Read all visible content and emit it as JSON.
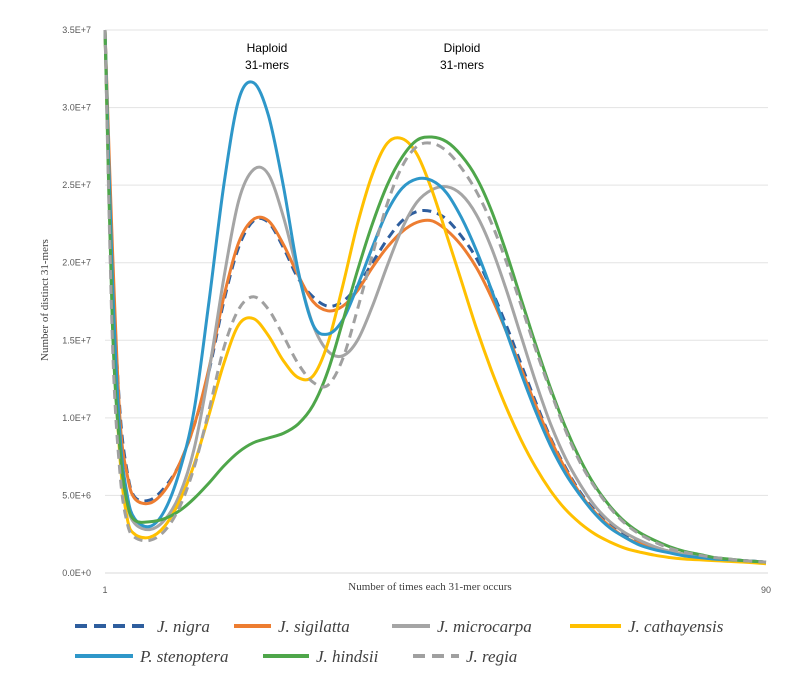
{
  "chart_data": {
    "type": "line",
    "title": "",
    "xlabel": "Number of times each 31-mer  occurs",
    "ylabel": "Number of distinct 31-mers",
    "xlim": [
      1,
      90
    ],
    "ylim": [
      0,
      35000000
    ],
    "grid": true,
    "legend_position": "bottom",
    "x_tick_labels": [
      "1",
      "90"
    ],
    "y_ticks": [
      {
        "value": 0,
        "label": "0.0E+0"
      },
      {
        "value": 5000000,
        "label": "5.0E+6"
      },
      {
        "value": 10000000,
        "label": "1.0E+7"
      },
      {
        "value": 15000000,
        "label": "1.5E+7"
      },
      {
        "value": 20000000,
        "label": "2.0E+7"
      },
      {
        "value": 25000000,
        "label": "2.5E+7"
      },
      {
        "value": 30000000,
        "label": "3.0E+7"
      },
      {
        "value": 35000000,
        "label": "3.5E+7"
      }
    ],
    "annotations": [
      {
        "lines": [
          "Haploid",
          "31-mers"
        ],
        "x": 22,
        "y": 34000000
      },
      {
        "lines": [
          "Diploid",
          "31-mers"
        ],
        "x": 47.5,
        "y": 34000000
      }
    ],
    "series": [
      {
        "name": "J. nigra",
        "color": "#2e5e9e",
        "dash": "dashed",
        "x": [
          1,
          2,
          3,
          4,
          5,
          7,
          9,
          11,
          13,
          15,
          17,
          19,
          21,
          23,
          25,
          27,
          29,
          31,
          33,
          35,
          37,
          39,
          41,
          43,
          45,
          47,
          49,
          51,
          53,
          55,
          57,
          59,
          61,
          63,
          65,
          67,
          69,
          71,
          73,
          75,
          77,
          79,
          81,
          83,
          85,
          87,
          90
        ],
        "y": [
          35000000,
          20000000,
          10500000,
          6500000,
          4900000,
          4700000,
          5500000,
          7000000,
          9500000,
          13000000,
          17500000,
          21000000,
          22700000,
          22600000,
          21000000,
          19000000,
          17800000,
          17200000,
          17500000,
          18500000,
          20000000,
          21500000,
          22700000,
          23300000,
          23300000,
          22800000,
          21700000,
          20300000,
          18300000,
          16000000,
          13500000,
          11000000,
          8700000,
          6800000,
          5200000,
          4000000,
          3100000,
          2400000,
          2000000,
          1600000,
          1400000,
          1200000,
          1050000,
          950000,
          850000,
          800000,
          700000
        ]
      },
      {
        "name": "J. sigilatta",
        "color": "#ed7d31",
        "dash": "solid",
        "x": [
          1,
          2,
          3,
          4,
          5,
          7,
          9,
          11,
          13,
          15,
          17,
          19,
          21,
          23,
          25,
          27,
          29,
          31,
          33,
          35,
          37,
          39,
          41,
          43,
          45,
          47,
          49,
          51,
          53,
          55,
          57,
          59,
          61,
          63,
          65,
          67,
          69,
          71,
          73,
          75,
          77,
          79,
          81,
          83,
          85,
          87,
          90
        ],
        "y": [
          35000000,
          21000000,
          10000000,
          6300000,
          4800000,
          4500000,
          5300000,
          7000000,
          9500000,
          13200000,
          17800000,
          21300000,
          22800000,
          22700000,
          21200000,
          19200000,
          17500000,
          16900000,
          17200000,
          18200000,
          19700000,
          21000000,
          22000000,
          22600000,
          22700000,
          22100000,
          21100000,
          19700000,
          17800000,
          15600000,
          13200000,
          10800000,
          8600000,
          6700000,
          5100000,
          3900000,
          3000000,
          2300000,
          1900000,
          1600000,
          1400000,
          1200000,
          1050000,
          950000,
          850000,
          800000,
          700000
        ]
      },
      {
        "name": "J. microcarpa",
        "color": "#a5a5a5",
        "dash": "solid",
        "x": [
          1,
          2,
          3,
          4,
          5,
          7,
          9,
          11,
          13,
          15,
          17,
          19,
          21,
          23,
          25,
          27,
          29,
          31,
          33,
          35,
          37,
          39,
          41,
          43,
          45,
          47,
          49,
          51,
          53,
          55,
          57,
          59,
          61,
          63,
          65,
          67,
          69,
          71,
          73,
          75,
          77,
          79,
          81,
          83,
          85,
          87,
          90
        ],
        "y": [
          35000000,
          18000000,
          8500000,
          4500000,
          3200000,
          2800000,
          3400000,
          5000000,
          8000000,
          13000000,
          19000000,
          24000000,
          26000000,
          25700000,
          23000000,
          19300000,
          16000000,
          14300000,
          14000000,
          15000000,
          17200000,
          19800000,
          22200000,
          23900000,
          24700000,
          24900000,
          24400000,
          23100000,
          21000000,
          18300000,
          15300000,
          12300000,
          9600000,
          7400000,
          5700000,
          4300000,
          3300000,
          2600000,
          2100000,
          1700000,
          1400000,
          1200000,
          1050000,
          950000,
          850000,
          800000,
          700000
        ]
      },
      {
        "name": "J. cathayensis",
        "color": "#ffc000",
        "dash": "solid",
        "x": [
          1,
          2,
          3,
          4,
          5,
          7,
          9,
          11,
          13,
          15,
          17,
          19,
          21,
          23,
          25,
          27,
          29,
          31,
          33,
          35,
          37,
          39,
          41,
          43,
          45,
          47,
          49,
          51,
          53,
          55,
          57,
          59,
          61,
          63,
          65,
          67,
          69,
          71,
          73,
          75,
          77,
          79,
          81,
          83,
          85,
          87,
          90
        ],
        "y": [
          35000000,
          17000000,
          7500000,
          3500000,
          2500000,
          2300000,
          3000000,
          4600000,
          7000000,
          10200000,
          13500000,
          16000000,
          16400000,
          15300000,
          13700000,
          12600000,
          12700000,
          14800000,
          18500000,
          22500000,
          25700000,
          27700000,
          28000000,
          27000000,
          24700000,
          21800000,
          18800000,
          15800000,
          13100000,
          10700000,
          8600000,
          6800000,
          5300000,
          4100000,
          3200000,
          2500000,
          2000000,
          1600000,
          1350000,
          1150000,
          1000000,
          900000,
          850000,
          800000,
          750000,
          700000,
          600000
        ]
      },
      {
        "name": "P. stenoptera",
        "color": "#2e97c9",
        "dash": "solid",
        "x": [
          1,
          2,
          3,
          4,
          5,
          7,
          9,
          11,
          13,
          15,
          17,
          19,
          21,
          23,
          25,
          27,
          29,
          31,
          33,
          35,
          37,
          39,
          41,
          43,
          45,
          47,
          49,
          51,
          53,
          55,
          57,
          59,
          61,
          63,
          65,
          67,
          69,
          71,
          73,
          75,
          77,
          79,
          81,
          83,
          85,
          87,
          90
        ],
        "y": [
          35000000,
          19000000,
          9000000,
          5000000,
          3500000,
          3000000,
          4000000,
          6500000,
          10500000,
          17500000,
          25000000,
          30500000,
          31600000,
          29500000,
          25000000,
          19500000,
          16000000,
          15400000,
          16300000,
          18500000,
          21000000,
          23300000,
          24800000,
          25400000,
          25300000,
          24500000,
          22900000,
          20800000,
          18300000,
          15600000,
          12900000,
          10400000,
          8200000,
          6400000,
          5000000,
          3800000,
          2900000,
          2300000,
          1800000,
          1500000,
          1300000,
          1100000,
          1000000,
          900000,
          850000,
          800000,
          700000
        ]
      },
      {
        "name": "J. hindsii",
        "color": "#4ea64a",
        "dash": "solid",
        "x": [
          1,
          2,
          3,
          4,
          5,
          7,
          9,
          11,
          13,
          15,
          17,
          19,
          21,
          23,
          25,
          27,
          29,
          31,
          33,
          35,
          37,
          39,
          41,
          43,
          45,
          47,
          49,
          51,
          53,
          55,
          57,
          59,
          61,
          63,
          65,
          67,
          69,
          71,
          73,
          75,
          77,
          79,
          81,
          83,
          85,
          87,
          90
        ],
        "y": [
          35000000,
          16000000,
          8000000,
          4500000,
          3400000,
          3300000,
          3500000,
          4000000,
          4800000,
          5800000,
          6900000,
          7800000,
          8400000,
          8700000,
          9000000,
          9600000,
          10800000,
          13000000,
          16200000,
          19500000,
          22500000,
          25000000,
          26800000,
          27900000,
          28100000,
          27800000,
          26900000,
          25500000,
          23400000,
          20700000,
          17700000,
          14700000,
          11900000,
          9400000,
          7300000,
          5600000,
          4300000,
          3300000,
          2600000,
          2100000,
          1700000,
          1400000,
          1200000,
          1000000,
          900000,
          800000,
          700000
        ]
      },
      {
        "name": "J. regia",
        "color": "#a0a0a0",
        "dash": "dashed",
        "x": [
          1,
          2,
          3,
          4,
          5,
          7,
          9,
          11,
          13,
          15,
          17,
          19,
          21,
          23,
          25,
          27,
          29,
          31,
          33,
          35,
          37,
          39,
          41,
          43,
          45,
          47,
          49,
          51,
          53,
          55,
          57,
          59,
          61,
          63,
          65,
          67,
          69,
          71,
          73,
          75,
          77,
          79,
          81,
          83,
          85,
          87,
          90
        ],
        "y": [
          35000000,
          15000000,
          6500000,
          3200000,
          2300000,
          2100000,
          2700000,
          4200000,
          6800000,
          10500000,
          14500000,
          17000000,
          17800000,
          17000000,
          15300000,
          13500000,
          12300000,
          12100000,
          13800000,
          17000000,
          20500000,
          23800000,
          26200000,
          27500000,
          27700000,
          27200000,
          26100000,
          24600000,
          22600000,
          20100000,
          17300000,
          14400000,
          11700000,
          9200000,
          7100000,
          5500000,
          4200000,
          3200000,
          2500000,
          2000000,
          1600000,
          1350000,
          1150000,
          1000000,
          900000,
          800000,
          700000
        ]
      }
    ]
  }
}
